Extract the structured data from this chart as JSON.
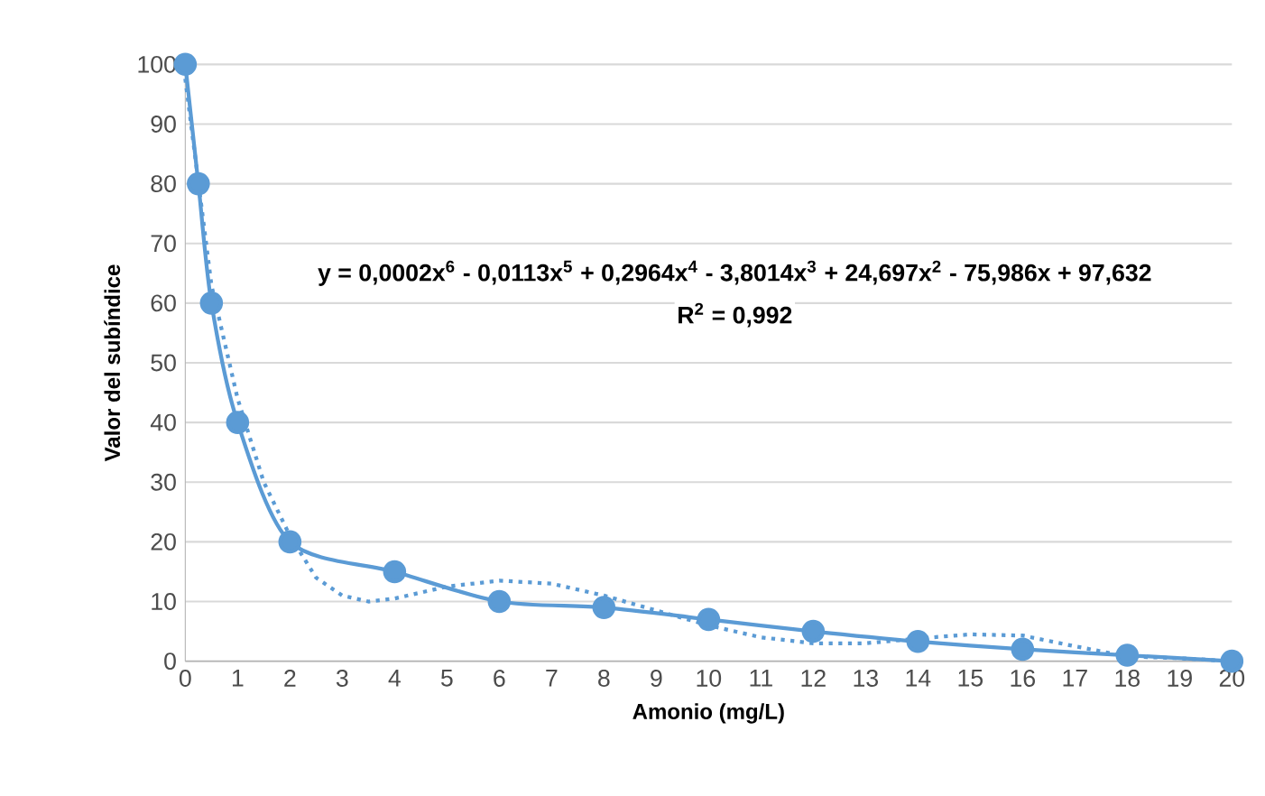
{
  "chart_data": {
    "type": "line",
    "xlabel": "Amonio (mg/L)",
    "ylabel": "Valor del subíndice",
    "annotations": [
      "y = 0,0002x$^{6}$ - 0,0113x$^{5}$ + 0,2964x$^{4}$ - 3,8014x$^{3}$ + 24,697x$^{2}$ - 75,986x + 97,632",
      "R$^{2}$ = 0,992"
    ],
    "series": [
      {
        "color": "#5b9bd5",
        "x": [
          0,
          0.25,
          0.5,
          1,
          2,
          4,
          6,
          8,
          10,
          12,
          14,
          16,
          18,
          20
        ],
        "values": [
          100,
          80,
          60,
          40,
          20,
          15,
          10,
          9,
          7,
          5,
          3.3,
          2,
          1,
          0
        ]
      },
      {
        "type": "line",
        "color": "#5b9bd5",
        "marker": "none",
        "line_style": "dotted",
        "x": [
          0,
          0.5,
          1,
          1.5,
          2,
          2.5,
          3,
          3.5,
          4,
          5,
          6,
          7,
          8,
          9,
          10,
          11,
          12,
          13,
          14,
          15,
          16,
          17,
          18,
          19,
          20
        ],
        "values": [
          97.6,
          63,
          44,
          30,
          21,
          14,
          11,
          10,
          10.5,
          12.5,
          13.5,
          13,
          11,
          8.5,
          6,
          4,
          3,
          3,
          3.8,
          4.5,
          4.3,
          2.5,
          0.8,
          0.5,
          0
        ]
      }
    ],
    "xlim": [
      0,
      20
    ],
    "ylim": [
      0,
      100
    ],
    "xticks": [
      0,
      1,
      2,
      3,
      4,
      5,
      6,
      7,
      8,
      9,
      10,
      11,
      12,
      13,
      14,
      15,
      16,
      17,
      18,
      19,
      20
    ],
    "yticks": [
      0,
      10,
      20,
      30,
      40,
      50,
      60,
      70,
      80,
      90,
      100
    ],
    "grid": "y",
    "legend": false,
    "marker": "circle",
    "line_style": "solid"
  }
}
